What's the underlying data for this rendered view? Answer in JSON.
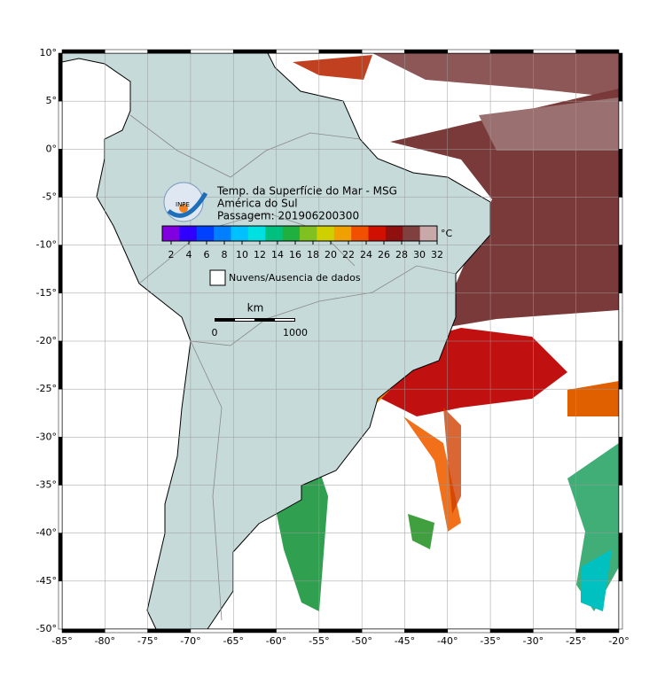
{
  "map": {
    "title_lines": [
      "Temp. da Superfície do Mar - MSG",
      "América do Sul",
      "Passagem: 201906200300"
    ],
    "logo_text": "INPE",
    "lonlim": [
      -85,
      -20
    ],
    "latlim": [
      -50,
      10
    ],
    "lonticks": [
      {
        "value": -85,
        "label": "-85°"
      },
      {
        "value": -80,
        "label": "-80°"
      },
      {
        "value": -75,
        "label": "-75°"
      },
      {
        "value": -70,
        "label": "-70°"
      },
      {
        "value": -65,
        "label": "-65°"
      },
      {
        "value": -60,
        "label": "-60°"
      },
      {
        "value": -55,
        "label": "-55°"
      },
      {
        "value": -50,
        "label": "-50°"
      },
      {
        "value": -45,
        "label": "-45°"
      },
      {
        "value": -40,
        "label": "-40°"
      },
      {
        "value": -35,
        "label": "-35°"
      },
      {
        "value": -30,
        "label": "-30°"
      },
      {
        "value": -25,
        "label": "-25°"
      },
      {
        "value": -20,
        "label": "-20°"
      }
    ],
    "latticks": [
      {
        "value": 10,
        "label": "10°"
      },
      {
        "value": 5,
        "label": "5°"
      },
      {
        "value": 0,
        "label": "0°"
      },
      {
        "value": -5,
        "label": "-5°"
      },
      {
        "value": -10,
        "label": "-10°"
      },
      {
        "value": -15,
        "label": "-15°"
      },
      {
        "value": -20,
        "label": "-20°"
      },
      {
        "value": -25,
        "label": "-25°"
      },
      {
        "value": -30,
        "label": "-30°"
      },
      {
        "value": -35,
        "label": "-35°"
      },
      {
        "value": -40,
        "label": "-40°"
      },
      {
        "value": -45,
        "label": "-45°"
      },
      {
        "value": -50,
        "label": "-50°"
      }
    ],
    "grid": true,
    "colorbar": {
      "range": [
        1,
        32
      ],
      "ticks": [
        2,
        4,
        6,
        8,
        10,
        12,
        14,
        16,
        18,
        20,
        22,
        24,
        26,
        28,
        30,
        32
      ],
      "unit": "°C",
      "colors": [
        "#8000e0",
        "#3000ff",
        "#0040ff",
        "#0080ff",
        "#00c0ff",
        "#00e0e0",
        "#00c080",
        "#20b040",
        "#80c020",
        "#d0d000",
        "#f0a000",
        "#f05000",
        "#d01000",
        "#901010",
        "#804040",
        "#c8a8a8"
      ]
    },
    "legend": "Nuvens/Ausencia de dados",
    "scale": {
      "unit": "km",
      "labels": [
        "0",
        "1000"
      ]
    }
  }
}
